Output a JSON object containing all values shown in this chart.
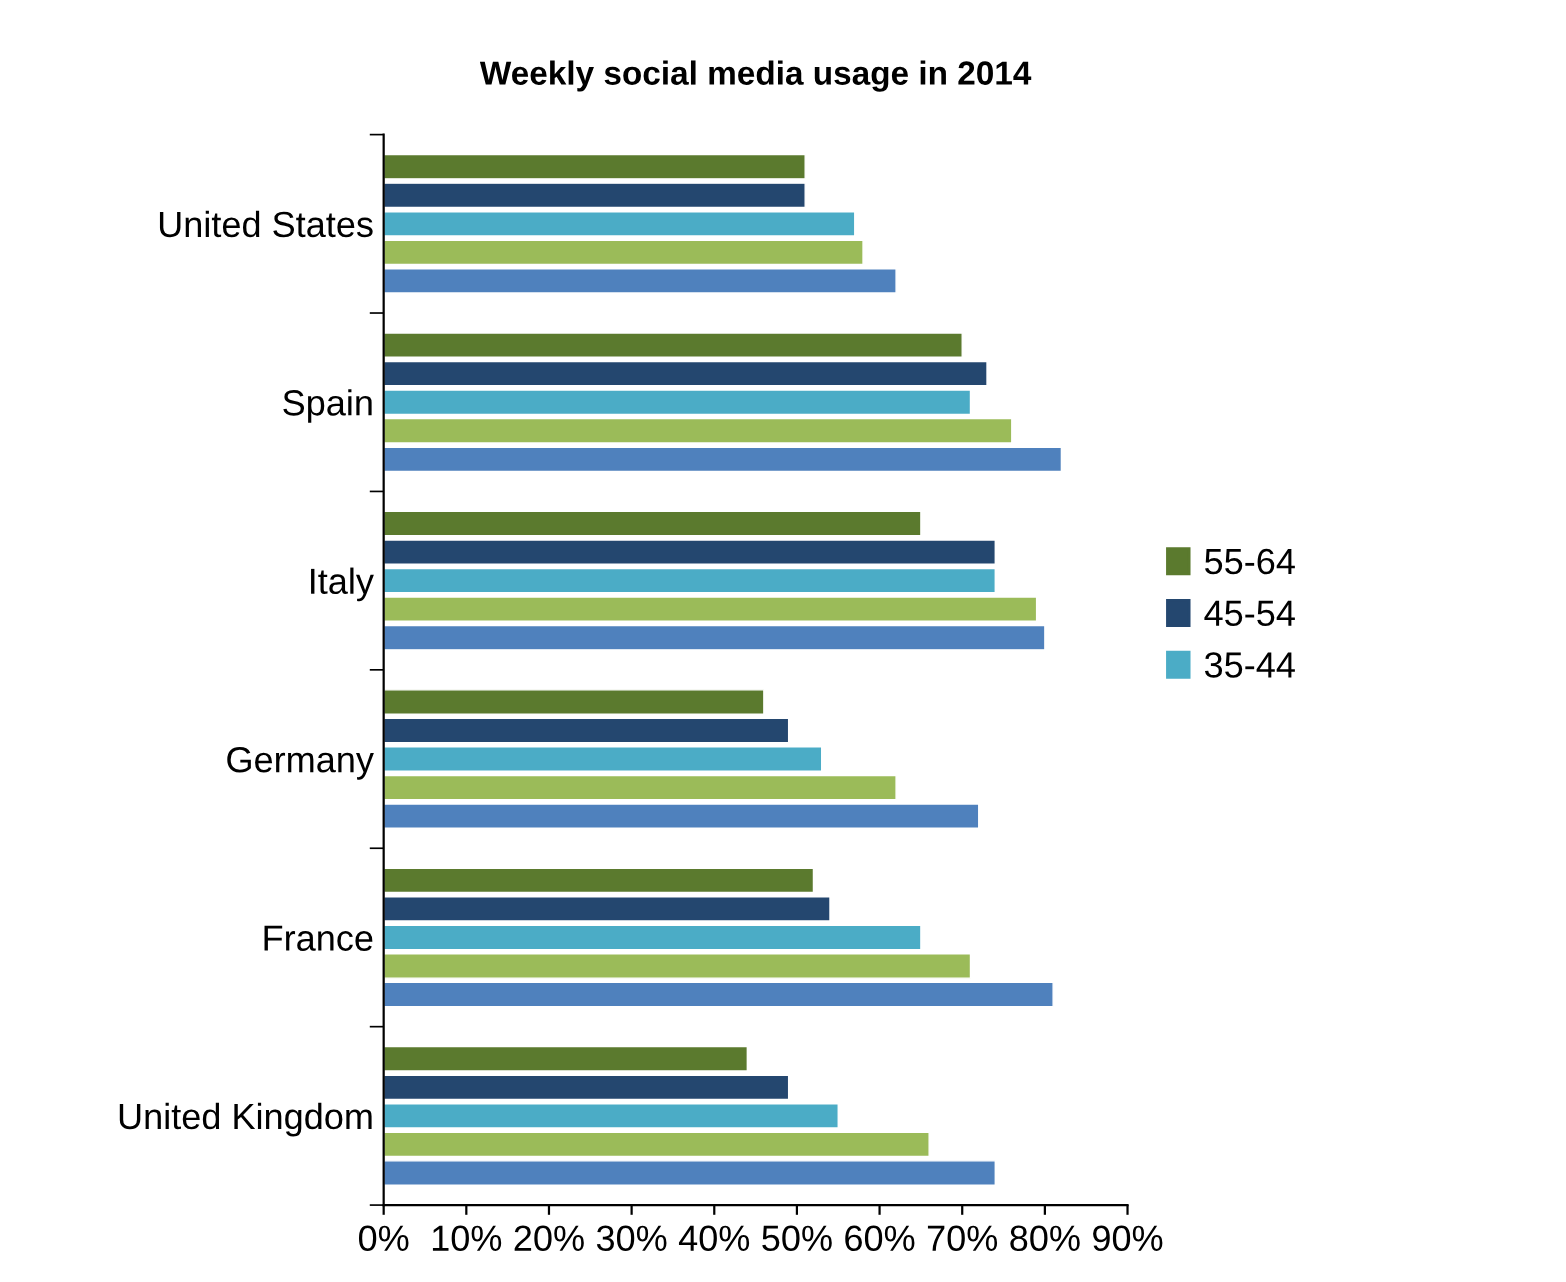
{
  "chart_data": {
    "type": "bar",
    "orientation": "horizontal",
    "title": "Weekly social media usage in 2014",
    "categories": [
      "United States",
      "Spain",
      "Italy",
      "Germany",
      "France",
      "United Kingdom"
    ],
    "series": [
      {
        "name": "55-64",
        "color": "#5b7a2e",
        "values": [
          51,
          70,
          65,
          46,
          52,
          44
        ]
      },
      {
        "name": "45-54",
        "color": "#24476f",
        "values": [
          51,
          73,
          74,
          49,
          54,
          49
        ]
      },
      {
        "name": "35-44",
        "color": "#4bacc6",
        "values": [
          57,
          71,
          74,
          53,
          65,
          55
        ]
      },
      {
        "color": "#9bbb59",
        "values": [
          58,
          76,
          79,
          62,
          71,
          66
        ]
      },
      {
        "color": "#4f81bd",
        "values": [
          62,
          82,
          80,
          72,
          81,
          74
        ]
      }
    ],
    "xlim": [
      0,
      90
    ],
    "xticks": [
      {
        "value": 0,
        "label": "0%"
      },
      {
        "value": 10,
        "label": "10%"
      },
      {
        "value": 20,
        "label": "20%"
      },
      {
        "value": 30,
        "label": "30%"
      },
      {
        "value": 40,
        "label": "40%"
      },
      {
        "value": 50,
        "label": "50%"
      },
      {
        "value": 60,
        "label": "60%"
      },
      {
        "value": 70,
        "label": "70%"
      },
      {
        "value": 80,
        "label": "80%"
      },
      {
        "value": 90,
        "label": "90%"
      }
    ],
    "grid": false,
    "legend": "right"
  }
}
